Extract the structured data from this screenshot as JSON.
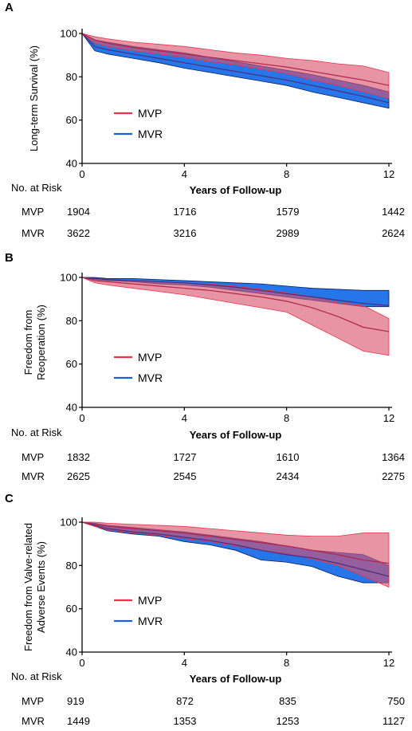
{
  "colors": {
    "mvp": "#e8334a",
    "mvp_band": "#d9536c",
    "mvr": "#1a5fd6",
    "mvr_band": "#1a6ee8",
    "overlap": "#6c3e8f",
    "axis": "#000000"
  },
  "chart_data": [
    {
      "panel": "A",
      "type": "line",
      "ylabel": "Long-term Survival (%)",
      "xlabel": "Years of Follow-up",
      "xlim": [
        0,
        12
      ],
      "ylim": [
        40,
        100
      ],
      "xticks": [
        0,
        4,
        8,
        12
      ],
      "yticks": [
        40,
        60,
        80,
        100
      ],
      "legend": {
        "position": "center-left",
        "entries": [
          "MVP",
          "MVR"
        ]
      },
      "series": [
        {
          "name": "MVP",
          "x": [
            0,
            0.5,
            1,
            2,
            3,
            4,
            5,
            6,
            7,
            8,
            9,
            10,
            11,
            12
          ],
          "y": [
            100,
            97,
            95.5,
            93.5,
            92,
            90.5,
            89,
            87.5,
            86,
            84.5,
            82.5,
            80.5,
            78.5,
            76
          ],
          "lower": [
            100,
            95.5,
            94,
            92,
            90.5,
            89,
            87,
            85.5,
            83.5,
            81.5,
            78.5,
            76,
            73,
            70
          ],
          "upper": [
            100,
            98.5,
            97.5,
            96,
            95,
            94,
            92.5,
            91,
            90,
            88.5,
            87.5,
            86,
            85,
            82
          ]
        },
        {
          "name": "MVR",
          "x": [
            0,
            0.5,
            1,
            2,
            3,
            4,
            5,
            6,
            7,
            8,
            9,
            10,
            11,
            12
          ],
          "y": [
            100,
            94,
            92.5,
            90.5,
            88.5,
            86.5,
            84.5,
            82.5,
            80.5,
            78.5,
            76,
            73.5,
            71,
            68
          ],
          "lower": [
            100,
            92,
            90.5,
            88.5,
            86.5,
            84,
            82,
            80,
            78,
            76,
            73,
            70.5,
            68,
            65.5
          ],
          "upper": [
            100,
            97,
            96,
            94,
            92.5,
            91,
            89,
            87,
            85,
            83,
            81,
            78.5,
            76,
            73
          ]
        }
      ],
      "risk_table": {
        "label": "No. at Risk",
        "rows": [
          {
            "name": "MVP",
            "values": [
              "1904",
              "1716",
              "1579",
              "1442"
            ]
          },
          {
            "name": "MVR",
            "values": [
              "3622",
              "3216",
              "2989",
              "2624"
            ]
          }
        ]
      }
    },
    {
      "panel": "B",
      "type": "line",
      "ylabel_lines": [
        "Freedom from",
        "Reoperation (%)"
      ],
      "xlabel": "Years of Follow-up",
      "xlim": [
        0,
        12
      ],
      "ylim": [
        40,
        100
      ],
      "xticks": [
        0,
        4,
        8,
        12
      ],
      "yticks": [
        40,
        60,
        80,
        100
      ],
      "legend": {
        "position": "center-left",
        "entries": [
          "MVP",
          "MVR"
        ]
      },
      "series": [
        {
          "name": "MVP",
          "x": [
            0,
            0.5,
            1,
            2,
            3,
            4,
            5,
            6,
            7,
            8,
            9,
            10,
            11,
            12
          ],
          "y": [
            100,
            98.5,
            98,
            97,
            96,
            95,
            94,
            92.5,
            91,
            89,
            86,
            82,
            77,
            75
          ],
          "lower": [
            100,
            97.5,
            96.5,
            95,
            93.5,
            92,
            90,
            88,
            86,
            84,
            78,
            72,
            66,
            64
          ],
          "upper": [
            100,
            99.5,
            99,
            98.5,
            98,
            97.5,
            97,
            96,
            94.5,
            93,
            91,
            88.5,
            87,
            81
          ]
        },
        {
          "name": "MVR",
          "x": [
            0,
            0.5,
            1,
            2,
            3,
            4,
            5,
            6,
            7,
            8,
            9,
            10,
            11,
            12
          ],
          "y": [
            100,
            99.5,
            99,
            98.5,
            98,
            97.5,
            96.5,
            95.5,
            94,
            92.5,
            91,
            89.5,
            88,
            87
          ],
          "lower": [
            100,
            99,
            98.5,
            98,
            97,
            96.5,
            95.5,
            94,
            92.5,
            91,
            89.5,
            88,
            86.5,
            86.5
          ],
          "upper": [
            100,
            100,
            99.5,
            99.5,
            99,
            98.5,
            98,
            97.5,
            97,
            96,
            95,
            94.5,
            94,
            94
          ]
        }
      ],
      "risk_table": {
        "label": "No. at Risk",
        "rows": [
          {
            "name": "MVP",
            "values": [
              "1832",
              "1727",
              "1610",
              "1364"
            ]
          },
          {
            "name": "MVR",
            "values": [
              "2625",
              "2545",
              "2434",
              "2275"
            ]
          }
        ]
      }
    },
    {
      "panel": "C",
      "type": "line",
      "ylabel_lines": [
        "Freedom from Valve-related",
        "Adverse Events (%)"
      ],
      "xlabel": "Years of Follow-up",
      "xlim": [
        0,
        12
      ],
      "ylim": [
        40,
        100
      ],
      "xticks": [
        0,
        4,
        8,
        12
      ],
      "yticks": [
        40,
        60,
        80,
        100
      ],
      "legend": {
        "position": "bottom-left",
        "entries": [
          "MVP",
          "MVR"
        ]
      },
      "series": [
        {
          "name": "MVP",
          "x": [
            0,
            0.5,
            1,
            2,
            3,
            4,
            5,
            6,
            7,
            8,
            9,
            10,
            11,
            12
          ],
          "y": [
            100,
            99,
            98,
            97,
            96,
            95,
            93.5,
            92,
            90.5,
            89,
            87,
            85,
            82.5,
            81
          ],
          "lower": [
            100,
            98,
            96.5,
            95,
            94,
            92.5,
            91,
            89,
            87,
            85.5,
            83,
            80,
            75,
            70
          ],
          "upper": [
            100,
            100,
            99.5,
            99,
            98.5,
            98,
            97,
            96,
            95,
            94,
            93.5,
            93.5,
            95,
            95
          ]
        },
        {
          "name": "MVR",
          "x": [
            0,
            0.5,
            1,
            2,
            3,
            4,
            5,
            6,
            7,
            8,
            9,
            10,
            11,
            12
          ],
          "y": [
            100,
            98.5,
            97,
            95.5,
            94.5,
            93,
            91.5,
            89.5,
            87,
            85,
            83.5,
            81,
            78,
            75
          ],
          "lower": [
            100,
            98,
            96,
            94.5,
            93.5,
            91,
            89.5,
            87,
            82.5,
            81.5,
            79.5,
            75,
            72,
            72
          ],
          "upper": [
            100,
            99.5,
            98.5,
            97.5,
            96.5,
            95.5,
            94,
            92.5,
            91,
            89,
            87,
            86,
            85,
            80
          ]
        }
      ],
      "risk_table": {
        "label": "No. at Risk",
        "rows": [
          {
            "name": "MVP",
            "values": [
              "919",
              "872",
              "835",
              "750"
            ]
          },
          {
            "name": "MVR",
            "values": [
              "1449",
              "1353",
              "1253",
              "1127"
            ]
          }
        ]
      }
    }
  ]
}
